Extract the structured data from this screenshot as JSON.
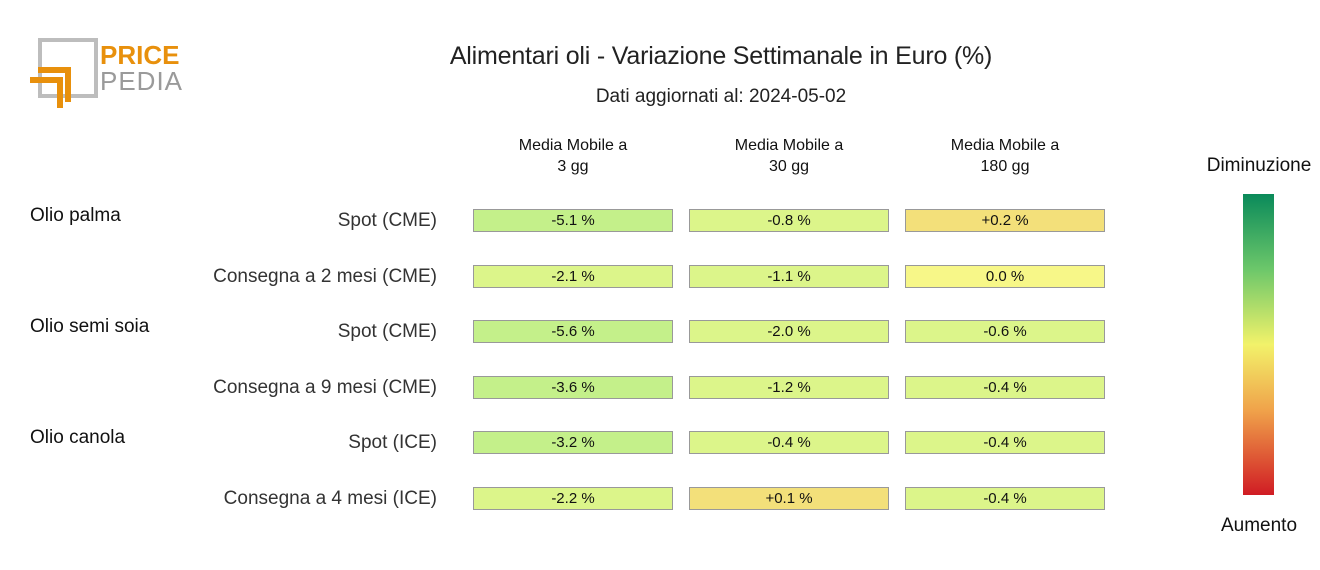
{
  "logo": {
    "line1": "PRICE",
    "line2": "PEDIA"
  },
  "chart_data": {
    "type": "heatmap",
    "title": "Alimentari oli - Variazione Settimanale in Euro (%)",
    "subtitle": "Dati aggiornati al: 2024-05-02",
    "columns": [
      "Media Mobile a\n3 gg",
      "Media Mobile a\n30 gg",
      "Media Mobile a\n180 gg"
    ],
    "groups": [
      {
        "name": "Olio palma",
        "rows": [
          {
            "label": "Spot (CME)",
            "values": [
              -5.1,
              -0.8,
              0.2
            ],
            "texts": [
              "-5.1 %",
              "-0.8 %",
              "+0.2 %"
            ]
          },
          {
            "label": "Consegna a 2 mesi (CME)",
            "values": [
              -2.1,
              -1.1,
              0.0
            ],
            "texts": [
              "-2.1 %",
              "-1.1 %",
              "0.0 %"
            ]
          }
        ]
      },
      {
        "name": "Olio semi soia",
        "rows": [
          {
            "label": "Spot (CME)",
            "values": [
              -5.6,
              -2.0,
              -0.6
            ],
            "texts": [
              "-5.6 %",
              "-2.0 %",
              "-0.6 %"
            ]
          },
          {
            "label": "Consegna a 9 mesi (CME)",
            "values": [
              -3.6,
              -1.2,
              -0.4
            ],
            "texts": [
              "-3.6 %",
              "-1.2 %",
              "-0.4 %"
            ]
          }
        ]
      },
      {
        "name": "Olio canola",
        "rows": [
          {
            "label": "Spot (ICE)",
            "values": [
              -3.2,
              -0.4,
              -0.4
            ],
            "texts": [
              "-3.2 %",
              "-0.4 %",
              "-0.4 %"
            ]
          },
          {
            "label": "Consegna a 4 mesi (ICE)",
            "values": [
              -2.2,
              0.1,
              -0.4
            ],
            "texts": [
              "-2.2 %",
              "+0.1 %",
              "-0.4 %"
            ]
          }
        ]
      }
    ],
    "legend": {
      "top": "Diminuzione",
      "bottom": "Aumento"
    },
    "colors": {
      "strong_decrease": "#c4f08a",
      "decrease": "#dcf58a",
      "neutral": "#f7f788",
      "increase": "#f3e07a"
    }
  }
}
